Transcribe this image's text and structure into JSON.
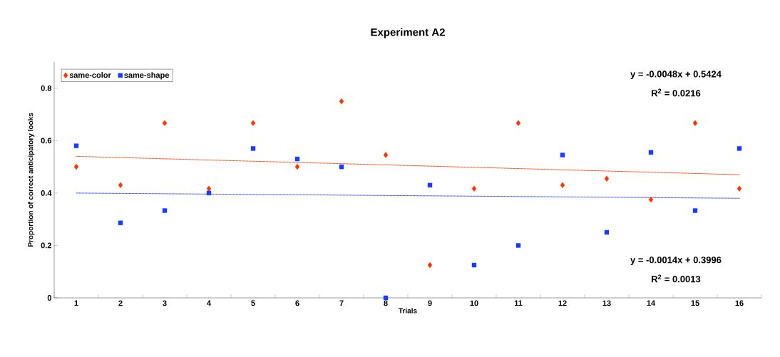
{
  "chart_data": {
    "type": "scatter",
    "title": "Experiment A2",
    "xlabel": "Trials",
    "ylabel": "Proportion of correct anticipatory looks",
    "categories": [
      "1",
      "2",
      "3",
      "4",
      "5",
      "6",
      "7",
      "8",
      "9",
      "10",
      "11",
      "12",
      "13",
      "14",
      "15",
      "16"
    ],
    "series": [
      {
        "name": "same-color",
        "color": "#ff3300",
        "marker": "diamond",
        "values": [
          0.5,
          0.43,
          0.667,
          0.417,
          0.667,
          0.5,
          0.75,
          0.545,
          0.125,
          0.417,
          0.667,
          0.43,
          0.455,
          0.375,
          0.667,
          0.417
        ]
      },
      {
        "name": "same-shape",
        "color": "#1a3cff",
        "marker": "square",
        "values": [
          0.58,
          0.286,
          0.333,
          0.4,
          0.57,
          0.53,
          0.5,
          0,
          0.43,
          0.125,
          0.2,
          0.545,
          0.25,
          0.555,
          0.333,
          0.57
        ]
      },
      {
        "type": "line",
        "color": "#ff3300",
        "marker": "none",
        "line_style": "dotted",
        "x": [
          "1",
          "16"
        ],
        "values": [
          0.54,
          0.47
        ]
      },
      {
        "type": "line",
        "color": "#1a3cff",
        "marker": "none",
        "line_style": "dotted",
        "x": [
          "1",
          "16"
        ],
        "values": [
          0.4,
          0.38
        ]
      }
    ],
    "ylim": [
      0,
      0.9
    ],
    "yticks": [
      0,
      0.2,
      0.4,
      0.6,
      0.8
    ],
    "legend": "top left",
    "annotations": [
      "y = -0.0048x + 0.5424",
      "R$^{2}$ = 0.0216",
      "y = -0.0014x + 0.3996",
      "R$^{2}$ = 0.0013"
    ]
  }
}
